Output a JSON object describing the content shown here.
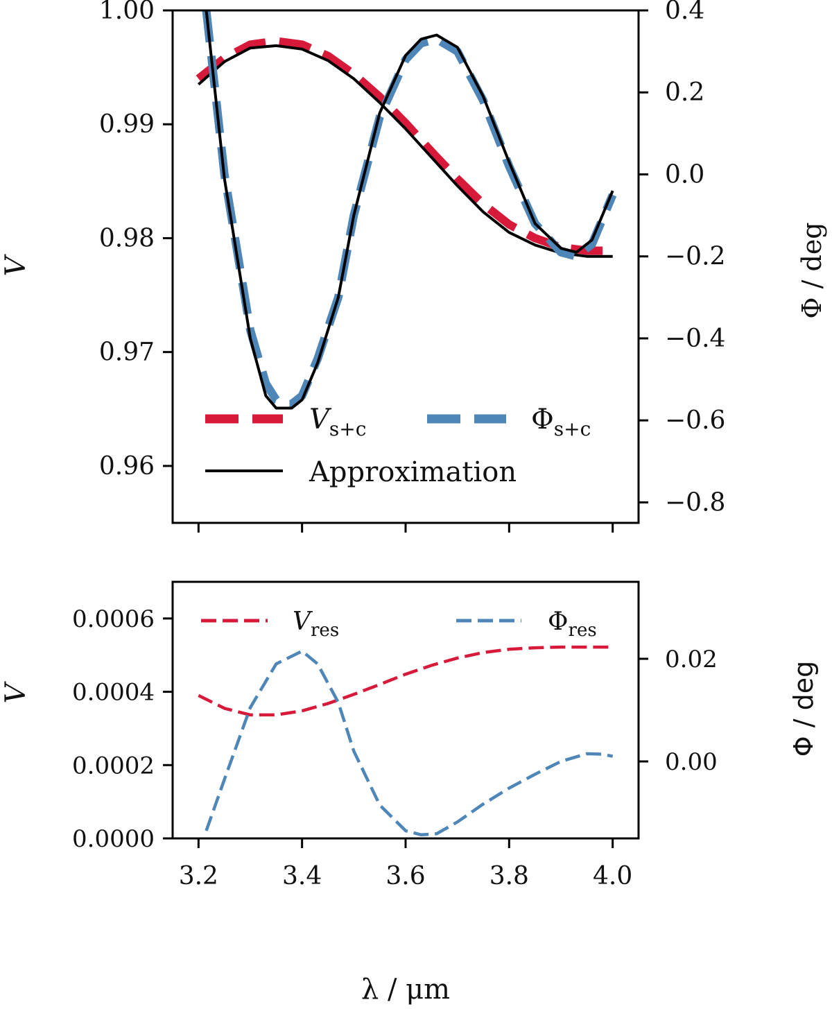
{
  "chart_data": [
    {
      "panel": "top",
      "type": "line",
      "x_domain": [
        3.15,
        4.05
      ],
      "left_axis": {
        "label": "V",
        "ylim": [
          0.955,
          1.0
        ],
        "ticks": [
          0.96,
          0.97,
          0.98,
          0.99,
          1.0
        ],
        "tick_labels": [
          "0.96",
          "0.97",
          "0.98",
          "0.99",
          "1.00"
        ]
      },
      "right_axis": {
        "label": "Φ / deg",
        "ylim": [
          -0.85,
          0.4
        ],
        "ticks": [
          -0.8,
          -0.6,
          -0.4,
          -0.2,
          0.0,
          0.2,
          0.4
        ],
        "tick_labels": [
          "−0.8",
          "−0.6",
          "−0.4",
          "−0.2",
          "0.0",
          "0.2",
          "0.4"
        ]
      },
      "x_ticks": [
        3.2,
        3.4,
        3.6,
        3.8,
        4.0
      ],
      "series": [
        {
          "name": "Vs+c",
          "axis": "left",
          "style": "dashed-thick",
          "color": "#d7193a",
          "x": [
            3.2,
            3.25,
            3.3,
            3.35,
            3.4,
            3.45,
            3.5,
            3.55,
            3.6,
            3.65,
            3.7,
            3.75,
            3.8,
            3.85,
            3.9,
            3.95,
            4.0
          ],
          "y": [
            0.994,
            0.9958,
            0.997,
            0.9973,
            0.997,
            0.996,
            0.9944,
            0.9924,
            0.9901,
            0.9876,
            0.9852,
            0.983,
            0.9812,
            0.98,
            0.9792,
            0.9789,
            0.9789
          ]
        },
        {
          "name": "Approximation (V)",
          "axis": "left",
          "style": "solid",
          "color": "#000000",
          "x": [
            3.2,
            3.25,
            3.3,
            3.35,
            3.4,
            3.45,
            3.5,
            3.55,
            3.6,
            3.65,
            3.7,
            3.75,
            3.8,
            3.85,
            3.9,
            3.95,
            4.0
          ],
          "y": [
            0.9935,
            0.9955,
            0.9967,
            0.9969,
            0.9966,
            0.9956,
            0.994,
            0.9919,
            0.9896,
            0.9871,
            0.9846,
            0.9823,
            0.9805,
            0.9794,
            0.9787,
            0.9784,
            0.9784
          ]
        },
        {
          "name": "Φs+c",
          "axis": "right",
          "style": "dashed-thick",
          "color": "#4f86b8",
          "x": [
            3.215,
            3.25,
            3.3,
            3.33,
            3.35,
            3.37,
            3.38,
            3.4,
            3.43,
            3.47,
            3.5,
            3.55,
            3.6,
            3.63,
            3.66,
            3.7,
            3.75,
            3.8,
            3.85,
            3.9,
            3.93,
            3.96,
            4.0
          ],
          "y": [
            0.4,
            0.0,
            -0.38,
            -0.51,
            -0.55,
            -0.56,
            -0.56,
            -0.54,
            -0.45,
            -0.3,
            -0.1,
            0.14,
            0.28,
            0.32,
            0.33,
            0.3,
            0.18,
            0.02,
            -0.12,
            -0.19,
            -0.2,
            -0.17,
            -0.05
          ]
        },
        {
          "name": "Approximation (Φ)",
          "axis": "right",
          "style": "solid",
          "color": "#000000",
          "x": [
            3.215,
            3.25,
            3.3,
            3.33,
            3.35,
            3.37,
            3.38,
            3.4,
            3.43,
            3.47,
            3.5,
            3.55,
            3.6,
            3.63,
            3.66,
            3.7,
            3.75,
            3.8,
            3.85,
            3.9,
            3.93,
            3.96,
            4.0
          ],
          "y": [
            0.4,
            -0.01,
            -0.4,
            -0.54,
            -0.57,
            -0.57,
            -0.57,
            -0.55,
            -0.46,
            -0.3,
            -0.1,
            0.15,
            0.29,
            0.33,
            0.34,
            0.31,
            0.19,
            0.03,
            -0.12,
            -0.18,
            -0.19,
            -0.16,
            -0.04
          ]
        }
      ],
      "legend": {
        "placement": "lower-center",
        "items": [
          {
            "label_main": "V",
            "label_sub": "s+c",
            "color": "#d7193a",
            "style": "dashed-thick"
          },
          {
            "label_main": "Φ",
            "label_sub": "s+c",
            "color": "#4f86b8",
            "style": "dashed-thick"
          },
          {
            "label_main": "Approximation",
            "label_sub": "",
            "color": "#000000",
            "style": "solid"
          }
        ]
      }
    },
    {
      "panel": "bottom",
      "type": "line",
      "x_domain": [
        3.15,
        4.05
      ],
      "xlabel": "λ / μm",
      "left_axis": {
        "label": "V",
        "ylim": [
          0.0,
          0.0007
        ],
        "ticks": [
          0.0,
          0.0002,
          0.0004,
          0.0006
        ],
        "tick_labels": [
          "0.0000",
          "0.0002",
          "0.0004",
          "0.0006"
        ]
      },
      "right_axis": {
        "label": "Φ / deg",
        "ylim": [
          -0.015,
          0.035
        ],
        "ticks": [
          0.0,
          0.02
        ],
        "tick_labels": [
          "0.00",
          "0.02"
        ]
      },
      "x_ticks": [
        3.2,
        3.4,
        3.6,
        3.8,
        4.0
      ],
      "x_tick_labels": [
        "3.2",
        "3.4",
        "3.6",
        "3.8",
        "4.0"
      ],
      "series": [
        {
          "name": "Vres",
          "axis": "left",
          "style": "dashed",
          "color": "#d7193a",
          "x": [
            3.2,
            3.25,
            3.3,
            3.35,
            3.4,
            3.45,
            3.5,
            3.55,
            3.6,
            3.65,
            3.7,
            3.75,
            3.8,
            3.85,
            3.9,
            3.95,
            4.0
          ],
          "y": [
            0.00039,
            0.000355,
            0.000337,
            0.000337,
            0.000348,
            0.000368,
            0.000393,
            0.00042,
            0.000448,
            0.000472,
            0.000492,
            0.000507,
            0.000516,
            0.00052,
            0.000522,
            0.000522,
            0.000522
          ]
        },
        {
          "name": "Φres",
          "axis": "right",
          "style": "dashed",
          "color": "#4f86b8",
          "x": [
            3.215,
            3.25,
            3.3,
            3.35,
            3.4,
            3.43,
            3.47,
            3.5,
            3.55,
            3.6,
            3.63,
            3.66,
            3.7,
            3.75,
            3.8,
            3.85,
            3.9,
            3.95,
            3.98,
            4.0
          ],
          "y": [
            -0.0135,
            -0.0035,
            0.0105,
            0.019,
            0.0215,
            0.019,
            0.0115,
            0.002,
            -0.0085,
            -0.0135,
            -0.0143,
            -0.0141,
            -0.0118,
            -0.0083,
            -0.0052,
            -0.0025,
            0.0,
            0.0015,
            0.0014,
            0.001
          ]
        }
      ],
      "legend": {
        "placement": "top",
        "items": [
          {
            "label_main": "V",
            "label_sub": "res",
            "color": "#d7193a",
            "style": "dashed"
          },
          {
            "label_main": "Φ",
            "label_sub": "res",
            "color": "#4f86b8",
            "style": "dashed"
          }
        ]
      }
    }
  ]
}
